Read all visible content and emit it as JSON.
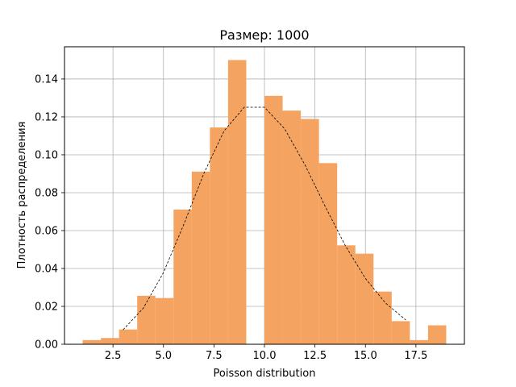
{
  "chart_data": {
    "type": "bar",
    "title": "Размер: 1000",
    "xlabel": "Poisson distribution",
    "ylabel": "Плотность распределения",
    "xlim": [
      0.1,
      19.9
    ],
    "ylim": [
      0.0,
      0.157
    ],
    "grid": true,
    "xticks": [
      2.5,
      5.0,
      7.5,
      10.0,
      12.5,
      15.0,
      17.5
    ],
    "xtick_labels": [
      "2.5",
      "5.0",
      "7.5",
      "10.0",
      "12.5",
      "15.0",
      "17.5"
    ],
    "yticks": [
      0.0,
      0.02,
      0.04,
      0.06,
      0.08,
      0.1,
      0.12,
      0.14
    ],
    "ytick_labels": [
      "0.00",
      "0.02",
      "0.04",
      "0.06",
      "0.08",
      "0.10",
      "0.12",
      "0.14"
    ],
    "bin_edges": [
      1.0,
      1.9,
      2.8,
      3.7,
      4.6,
      5.5,
      6.4,
      7.3,
      8.2,
      9.1,
      10.0,
      10.9,
      11.8,
      12.7,
      13.6,
      14.5,
      15.4,
      16.3,
      17.2,
      18.1,
      19.0
    ],
    "densities": [
      0.0022,
      0.0033,
      0.0078,
      0.0256,
      0.0244,
      0.0711,
      0.0911,
      0.1144,
      0.15,
      0.0,
      0.1311,
      0.1233,
      0.1189,
      0.0956,
      0.0522,
      0.0478,
      0.0278,
      0.0122,
      0.0022,
      0.01
    ],
    "bar_color": "#f4a460",
    "pmf_line": {
      "style": "dashed",
      "color": "#000000",
      "x": [
        3,
        4,
        5,
        6,
        7,
        8,
        9,
        10,
        11,
        12,
        13,
        14,
        15,
        16,
        17
      ],
      "y": [
        0.0076,
        0.019,
        0.0378,
        0.0631,
        0.0901,
        0.1126,
        0.1251,
        0.1251,
        0.1137,
        0.0948,
        0.0729,
        0.0521,
        0.0347,
        0.0217,
        0.0128
      ]
    }
  }
}
